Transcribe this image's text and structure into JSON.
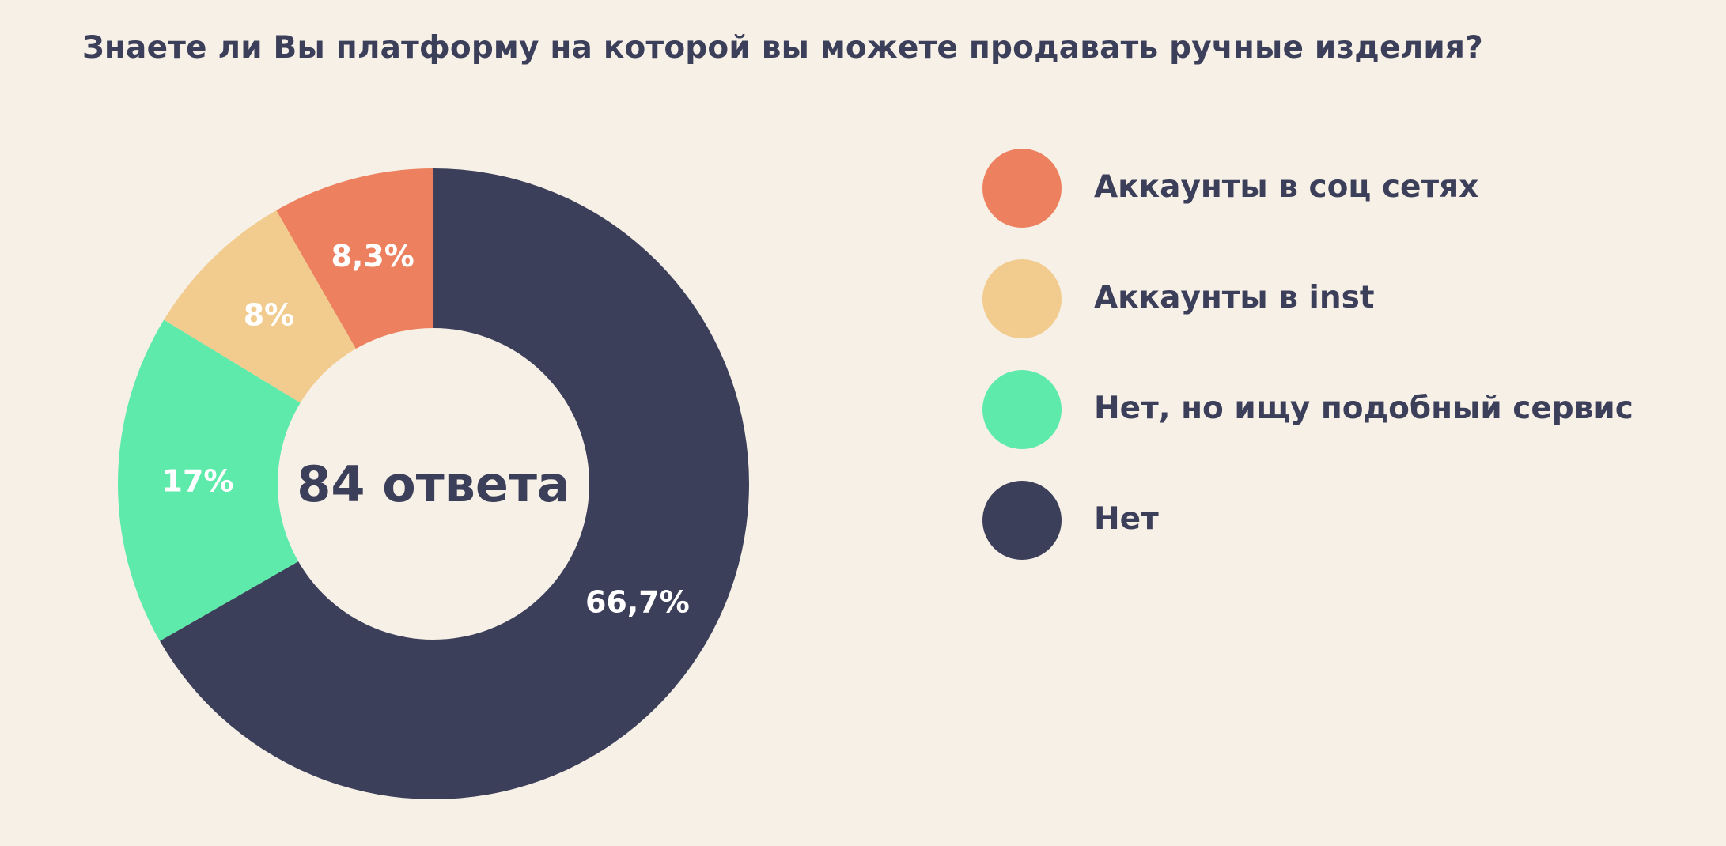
{
  "title": "Знаете ли Вы платформу на которой вы можете продавать ручные изделия?",
  "chart_data": {
    "type": "pie",
    "variant": "donut",
    "title": "Знаете ли Вы платформу на которой вы можете продавать ручные изделия?",
    "center_label": "84 ответа",
    "legend_position": "right",
    "slices": [
      {
        "name": "Аккаунты в соц сетях",
        "value": 8.3,
        "label": "8,3%",
        "color": "#ec805f",
        "label_color": "#ffffff"
      },
      {
        "name": "Аккаунты в inst",
        "value": 8,
        "label": "8%",
        "color": "#f2cc8f",
        "label_color": "#ffffff"
      },
      {
        "name": "Нет, но ищу подобный сервис",
        "value": 17,
        "label": "17%",
        "color": "#5eeaaa",
        "label_color": "#ffffff"
      },
      {
        "name": "Нет",
        "value": 66.7,
        "label": "66,7%",
        "color": "#3c3f5a",
        "label_color": "#ffffff"
      }
    ]
  }
}
